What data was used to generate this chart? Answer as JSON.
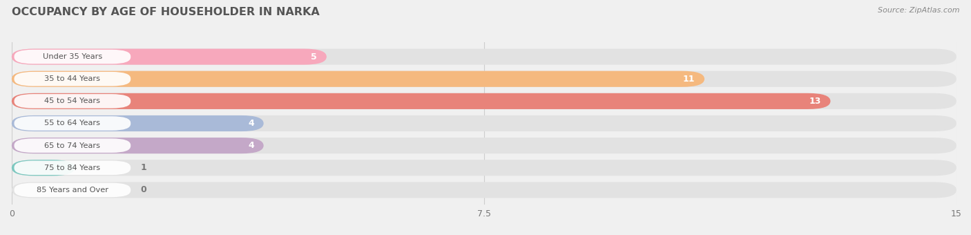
{
  "title": "OCCUPANCY BY AGE OF HOUSEHOLDER IN NARKA",
  "source": "Source: ZipAtlas.com",
  "categories": [
    "Under 35 Years",
    "35 to 44 Years",
    "45 to 54 Years",
    "55 to 64 Years",
    "65 to 74 Years",
    "75 to 84 Years",
    "85 Years and Over"
  ],
  "values": [
    5,
    11,
    13,
    4,
    4,
    1,
    0
  ],
  "bar_colors": [
    "#f7a8bc",
    "#f5b97f",
    "#e8837a",
    "#a9bad8",
    "#c4a8c8",
    "#7dc8c0",
    "#c8c0e0"
  ],
  "xlim": [
    0,
    15
  ],
  "xticks": [
    0,
    7.5,
    15
  ],
  "background_color": "#f0f0f0",
  "bar_bg_color": "#e2e2e2",
  "white_label_bg": "#ffffff",
  "title_color": "#555555",
  "source_color": "#888888",
  "label_color": "#555555",
  "value_color_inside": "#ffffff",
  "value_color_outside": "#777777"
}
